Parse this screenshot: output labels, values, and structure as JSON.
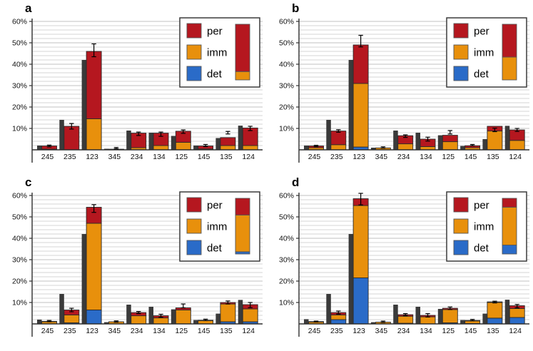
{
  "colors": {
    "per": "#b5171f",
    "imm": "#e8900c",
    "det": "#2a6bc8",
    "gray_bar": "#3a3a3a",
    "outline": "#2b2b2b",
    "axis": "#2f2f2f",
    "grid_minor": "#d6d6d6",
    "grid_major": "#c2c2c2",
    "error_bar": "#000000",
    "legend_border": "#3c3c3c"
  },
  "legend": {
    "items": [
      {
        "key": "per",
        "label": "per"
      },
      {
        "key": "imm",
        "label": "imm"
      },
      {
        "key": "det",
        "label": "det"
      }
    ]
  },
  "y_axis": {
    "tick_labels": [
      "60%",
      "50%",
      "40%",
      "30%",
      "20%",
      "10%"
    ],
    "tick_values": [
      60,
      50,
      40,
      30,
      20,
      10
    ],
    "max": 60,
    "minor_step": 2,
    "grid": true
  },
  "chart_data": [
    {
      "type": "bar",
      "panel": "a",
      "stacked": true,
      "title": "",
      "xlabel": "",
      "ylabel": "",
      "ylim": [
        0,
        62
      ],
      "legend_position": "top-right-inside",
      "categories": [
        "245",
        "235",
        "123",
        "345",
        "234",
        "134",
        "125",
        "145",
        "135",
        "124"
      ],
      "series": [
        {
          "name": "reference",
          "values": [
            2,
            14,
            42,
            0.5,
            9,
            8,
            6.5,
            2,
            5.5,
            11.3
          ]
        },
        {
          "name": "det",
          "values": [
            0,
            0,
            0,
            0,
            0,
            0,
            0,
            0,
            0,
            0
          ]
        },
        {
          "name": "imm",
          "values": [
            0.3,
            0,
            14.5,
            0.2,
            1.0,
            2.0,
            3.5,
            0.4,
            2.0,
            2.0
          ]
        },
        {
          "name": "per",
          "values": [
            1.5,
            11,
            31.5,
            0.1,
            6.8,
            5.8,
            5.2,
            1.4,
            3.7,
            8.2
          ]
        }
      ],
      "error_bars": {
        "center": [
          1.8,
          11,
          46.5,
          0.8,
          7.5,
          7.3,
          8.5,
          2.0,
          8.0,
          10.0
        ],
        "half": [
          0.4,
          1.3,
          3.0,
          0.3,
          0.8,
          1.0,
          0.8,
          0.5,
          0.6,
          1.0
        ]
      },
      "legend_summary_bar": {
        "det": 0,
        "imm": 15,
        "per": 85
      }
    },
    {
      "type": "bar",
      "panel": "b",
      "stacked": true,
      "title": "",
      "xlabel": "",
      "ylabel": "",
      "ylim": [
        0,
        62
      ],
      "legend_position": "top-right-inside",
      "categories": [
        "245",
        "235",
        "123",
        "345",
        "234",
        "134",
        "125",
        "145",
        "135",
        "124"
      ],
      "series": [
        {
          "name": "reference",
          "values": [
            2,
            14,
            42,
            1,
            9,
            8,
            6.8,
            1.8,
            5,
            11.2
          ]
        },
        {
          "name": "det",
          "values": [
            0,
            0,
            1.3,
            0,
            0,
            0,
            0,
            0,
            0,
            0
          ]
        },
        {
          "name": "imm",
          "values": [
            1.0,
            2.4,
            29.7,
            0.9,
            2.8,
            1.5,
            3.8,
            1.0,
            8.8,
            4.4
          ]
        },
        {
          "name": "per",
          "values": [
            0.8,
            6.4,
            18.0,
            0,
            3.8,
            3.5,
            3.0,
            0.9,
            2.2,
            4.9
          ]
        }
      ],
      "error_bars": {
        "center": [
          1.8,
          8.8,
          50.8,
          1.1,
          6.4,
          5.0,
          8.2,
          2.2,
          9.3,
          9.3
        ],
        "half": [
          0.3,
          0.6,
          2.7,
          0.3,
          0.6,
          0.9,
          0.8,
          0.3,
          0.8,
          0.7
        ]
      },
      "legend_summary_bar": {
        "det": 0,
        "imm": 41,
        "per": 59
      }
    },
    {
      "type": "bar",
      "panel": "c",
      "stacked": true,
      "title": "",
      "xlabel": "",
      "ylabel": "",
      "ylim": [
        0,
        62
      ],
      "legend_position": "top-right-inside",
      "categories": [
        "245",
        "235",
        "123",
        "345",
        "234",
        "134",
        "125",
        "145",
        "135",
        "124"
      ],
      "series": [
        {
          "name": "reference",
          "values": [
            2,
            14,
            42,
            0.8,
            9,
            8,
            6.8,
            1.8,
            4.8,
            11.2
          ]
        },
        {
          "name": "det",
          "values": [
            0,
            0.5,
            6.5,
            0,
            0,
            0,
            0,
            0,
            1.0,
            1.0
          ]
        },
        {
          "name": "imm",
          "values": [
            1.0,
            3.7,
            40.5,
            1.0,
            3.8,
            2.8,
            6.5,
            1.5,
            8.3,
            6.0
          ]
        },
        {
          "name": "per",
          "values": [
            0.2,
            2.3,
            7.5,
            0,
            1.5,
            1.0,
            1.0,
            0.2,
            0.7,
            2.0
          ]
        }
      ],
      "error_bars": {
        "center": [
          1.3,
          6.5,
          53.9,
          1.1,
          5.3,
          3.8,
          8.4,
          1.9,
          10.0,
          8.8
        ],
        "half": [
          0.3,
          0.8,
          1.8,
          0.3,
          0.5,
          0.7,
          0.9,
          0.3,
          0.7,
          1.2
        ]
      },
      "legend_summary_bar": {
        "det": 4,
        "imm": 66,
        "per": 30
      }
    },
    {
      "type": "bar",
      "panel": "d",
      "stacked": true,
      "title": "",
      "xlabel": "",
      "ylabel": "",
      "ylim": [
        0,
        62
      ],
      "legend_position": "top-right-inside",
      "categories": [
        "245",
        "235",
        "123",
        "345",
        "234",
        "134",
        "125",
        "145",
        "135",
        "124"
      ],
      "series": [
        {
          "name": "reference",
          "values": [
            2.2,
            14,
            42,
            0.8,
            9,
            8,
            7,
            1.8,
            4.8,
            11.3
          ]
        },
        {
          "name": "det",
          "values": [
            0,
            2.0,
            21.5,
            0,
            0.3,
            0,
            0.5,
            0.2,
            2.7,
            3.0
          ]
        },
        {
          "name": "imm",
          "values": [
            0.9,
            2.2,
            33.8,
            0.8,
            3.3,
            3.3,
            6.2,
            1.2,
            7.3,
            4.2
          ]
        },
        {
          "name": "per",
          "values": [
            0.2,
            1.1,
            3.2,
            0,
            0.7,
            0.7,
            0.6,
            0.2,
            0.3,
            1.3
          ]
        }
      ],
      "error_bars": {
        "center": [
          1.1,
          5.3,
          58.3,
          1.0,
          4.3,
          4.0,
          7.3,
          1.8,
          10.2,
          8.3
        ],
        "half": [
          0.2,
          0.7,
          2.7,
          0.3,
          0.5,
          0.8,
          0.6,
          0.3,
          0.4,
          0.8
        ]
      },
      "legend_summary_bar": {
        "det": 16,
        "imm": 68,
        "per": 16
      }
    }
  ]
}
